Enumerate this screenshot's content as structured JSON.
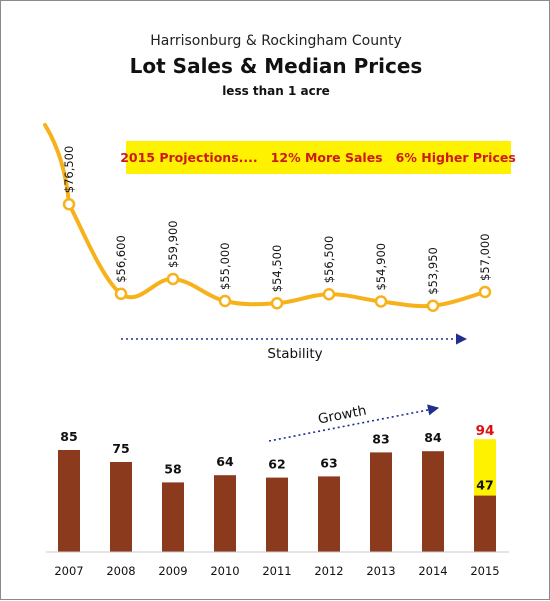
{
  "header": {
    "subtitle": "Harrisonburg & Rockingham County",
    "title": "Lot Sales & Median Prices",
    "subtitle2": "less than 1 acre"
  },
  "banner": {
    "text": "2015 Projections....   12% More Sales   6% Higher Prices",
    "bg_color": "#fff200",
    "text_color": "#d01818"
  },
  "annotations": {
    "stability": "Stability",
    "growth": "Growth",
    "arrow_color": "#1f2f8f"
  },
  "colors": {
    "line": "#f7b21b",
    "bar": "#8b3a1e",
    "projection": "#fff200",
    "projection_label": "#e01010"
  },
  "chart_data": [
    {
      "type": "line",
      "title": "Median Prices",
      "x": [
        "2007",
        "2008",
        "2009",
        "2010",
        "2011",
        "2012",
        "2013",
        "2014",
        "2015"
      ],
      "series": [
        {
          "values": [
            76500,
            56600,
            59900,
            55000,
            54500,
            56500,
            54900,
            53950,
            57000
          ]
        }
      ],
      "labels": [
        "$76,500",
        "$56,600",
        "$59,900",
        "$55,000",
        "$54,500",
        "$56,500",
        "$54,900",
        "$53,950",
        "$57,000"
      ]
    },
    {
      "type": "bar",
      "title": "Lot Sales",
      "categories": [
        "2007",
        "2008",
        "2009",
        "2010",
        "2011",
        "2012",
        "2013",
        "2014",
        "2015"
      ],
      "values": [
        85,
        75,
        58,
        64,
        62,
        63,
        83,
        84,
        47
      ],
      "labels": [
        "85",
        "75",
        "58",
        "64",
        "62",
        "63",
        "83",
        "84",
        "47"
      ],
      "projection": {
        "category": "2015",
        "value": 94,
        "label": "94"
      }
    }
  ]
}
